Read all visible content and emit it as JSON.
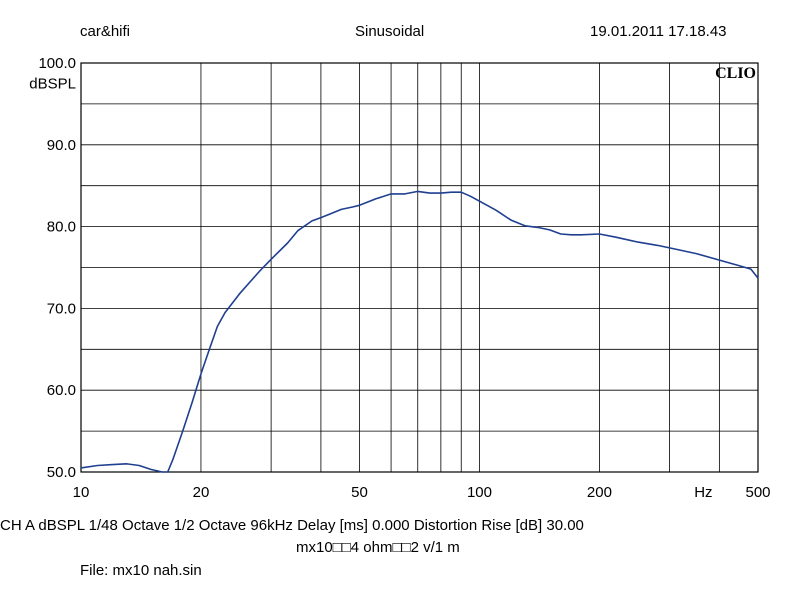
{
  "header": {
    "left": "car&hifi",
    "center": "Sinusoidal",
    "right": "19.01.2011 17.18.43"
  },
  "brand": "CLIO",
  "footer": {
    "settings_line": "CH A   dBSPL    1/48 Octave    1/2 Octave    96kHz    Delay [ms] 0.000    Distortion Rise [dB] 30.00",
    "description": "mx10□□4 ohm□□2 v/1 m",
    "file": "File: mx10 nah.sin"
  },
  "chart_data": {
    "type": "line",
    "xscale": "log",
    "xlim": [
      10,
      500
    ],
    "ylim": [
      50,
      100
    ],
    "ylabel": "dBSPL",
    "xlabel": "Hz",
    "x_tick_labels": [
      {
        "value": 10,
        "label": "10"
      },
      {
        "value": 20,
        "label": "20"
      },
      {
        "value": 50,
        "label": "50"
      },
      {
        "value": 100,
        "label": "100"
      },
      {
        "value": 200,
        "label": "200"
      },
      {
        "value": 500,
        "label": "500"
      }
    ],
    "y_tick_labels": [
      {
        "value": 100,
        "label": "100.0"
      },
      {
        "value": 90,
        "label": "90.0"
      },
      {
        "value": 80,
        "label": "80.0"
      },
      {
        "value": 70,
        "label": "70.0"
      },
      {
        "value": 60,
        "label": "60.0"
      },
      {
        "value": 50,
        "label": "50.0"
      }
    ],
    "x_gridlines": [
      20,
      30,
      40,
      50,
      60,
      70,
      80,
      90,
      100,
      200,
      300,
      400
    ],
    "y_gridlines": [
      55,
      60,
      65,
      70,
      75,
      80,
      85,
      90,
      95
    ],
    "grid": true,
    "line_color": "#1f3f8f",
    "series": [
      {
        "x": [
          10,
          11,
          12,
          13,
          14,
          15,
          16,
          16.5,
          17,
          18,
          19,
          20,
          21,
          22,
          23,
          25,
          28,
          30,
          33,
          35,
          38,
          40,
          42,
          45,
          48,
          50,
          55,
          60,
          65,
          70,
          75,
          80,
          85,
          90,
          95,
          100,
          110,
          120,
          130,
          140,
          150,
          160,
          170,
          180,
          200,
          220,
          250,
          280,
          300,
          350,
          400,
          450,
          480,
          500
        ],
        "y": [
          50.5,
          50.8,
          50.9,
          51.0,
          50.8,
          50.3,
          49.7,
          49.8,
          51.5,
          55.0,
          58.5,
          62.0,
          65.0,
          67.8,
          69.5,
          71.8,
          74.5,
          76.0,
          78.0,
          79.5,
          80.7,
          81.1,
          81.5,
          82.1,
          82.4,
          82.6,
          83.4,
          84.0,
          84.0,
          84.3,
          84.1,
          84.1,
          84.2,
          84.2,
          83.7,
          83.1,
          82.0,
          80.8,
          80.1,
          79.9,
          79.6,
          79.1,
          79.0,
          79.0,
          79.1,
          78.7,
          78.1,
          77.7,
          77.4,
          76.7,
          75.9,
          75.2,
          74.8,
          73.7
        ]
      }
    ]
  }
}
